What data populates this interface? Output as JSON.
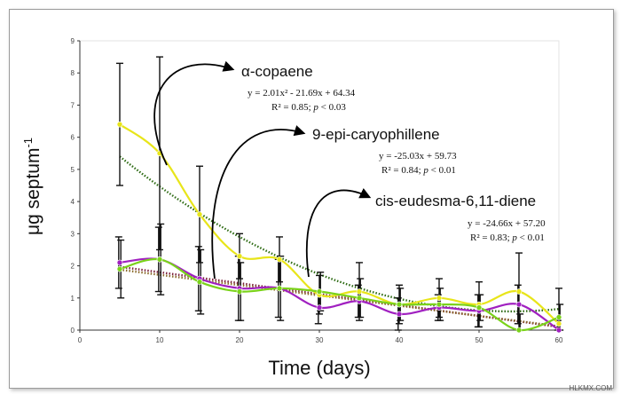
{
  "chart_data": {
    "type": "line",
    "xlabel": "Time (days)",
    "ylabel_main": "μg septum",
    "ylabel_sup": "-1",
    "xlim": [
      0,
      60
    ],
    "ylim": [
      0,
      9
    ],
    "x_ticks": [
      "0",
      "10",
      "20",
      "30",
      "40",
      "50",
      "60"
    ],
    "y_ticks": [
      "0",
      "1",
      "2",
      "3",
      "4",
      "5",
      "6",
      "7",
      "8",
      "9"
    ],
    "x": [
      5,
      10,
      15,
      20,
      25,
      30,
      35,
      40,
      45,
      50,
      55,
      60
    ],
    "series": [
      {
        "name": "α-copaene",
        "color": "#e8e51a",
        "values": [
          6.4,
          5.5,
          3.6,
          2.3,
          2.2,
          1.1,
          1.2,
          0.8,
          1.0,
          0.8,
          1.2,
          0.2
        ],
        "err": [
          1.9,
          3.0,
          1.5,
          0.7,
          0.7,
          0.6,
          0.9,
          0.6,
          0.6,
          0.7,
          1.2,
          1.1
        ],
        "trend_color": "#2e6b14",
        "fit": {
          "type": "poly2",
          "a": 2.01,
          "b": -21.69,
          "c": 64.34
        },
        "equation": "y = 2.01x² - 21.69x + 64.34",
        "r2_prefix": "R² = 0.85; ",
        "p_label": "p",
        "p_value": " < 0.03"
      },
      {
        "name": "9-epi-caryophillene",
        "color": "#a020c0",
        "values": [
          2.1,
          2.2,
          1.6,
          1.3,
          1.3,
          0.7,
          0.9,
          0.5,
          0.7,
          0.6,
          0.8,
          0.0
        ],
        "err": [
          0.8,
          1.0,
          1.0,
          1.0,
          0.9,
          0.5,
          0.5,
          0.5,
          0.4,
          0.5,
          0.6,
          0.3
        ],
        "trend_color": "#7a1f3a",
        "fit": {
          "type": "linear_days",
          "start": 1.97,
          "end": 0.1
        },
        "equation": "y = -25.03x + 59.73",
        "r2_prefix": "R² = 0.84; ",
        "p_label": "p",
        "p_value": " < 0.01"
      },
      {
        "name": "cis-eudesma-6,11-diene",
        "color": "#7ad21a",
        "values": [
          1.9,
          2.2,
          1.5,
          1.2,
          1.3,
          1.2,
          1.0,
          0.8,
          0.8,
          0.7,
          0.0,
          0.4
        ],
        "err": [
          0.9,
          1.1,
          1.0,
          0.9,
          1.0,
          0.6,
          0.6,
          0.5,
          0.5,
          0.4,
          0.5,
          0.4
        ],
        "trend_color": "#8a6a2a",
        "fit": {
          "type": "linear_days",
          "start": 1.88,
          "end": 0.12
        },
        "equation": "y = -24.66x + 57.20",
        "r2_prefix": "R² = 0.83; ",
        "p_label": "p",
        "p_value": " < 0.01"
      }
    ]
  },
  "watermark": "HLKMX.COM"
}
